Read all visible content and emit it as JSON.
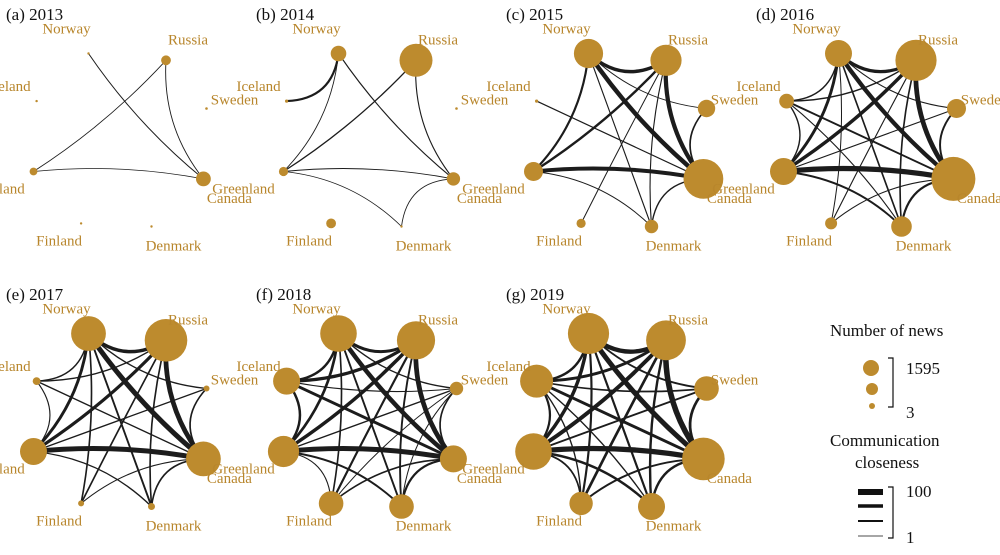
{
  "colors": {
    "node": "#bd8b2e",
    "label": "#b8862c",
    "edge": "#1c1c1c",
    "text": "#111111"
  },
  "countries": [
    "Norway",
    "Russia",
    "Sweden",
    "Canada",
    "Denmark",
    "Finland",
    "Greenland",
    "Iceland"
  ],
  "panels": [
    {
      "id": "2013",
      "title": "(a) 2013",
      "news": {
        "Norway": 3,
        "Russia": 80,
        "Sweden": 6,
        "Canada": 180,
        "Denmark": 3,
        "Finland": 3,
        "Greenland": 50,
        "Iceland": 3
      },
      "edges": [
        {
          "a": "Norway",
          "b": "Canada",
          "w": 8
        },
        {
          "a": "Russia",
          "b": "Canada",
          "w": 6
        },
        {
          "a": "Russia",
          "b": "Greenland",
          "w": 5
        },
        {
          "a": "Greenland",
          "b": "Canada",
          "w": 4
        }
      ]
    },
    {
      "id": "2014",
      "title": "(b) 2014",
      "news": {
        "Norway": 200,
        "Russia": 900,
        "Sweden": 6,
        "Canada": 150,
        "Denmark": 3,
        "Finland": 80,
        "Greenland": 70,
        "Iceland": 8
      },
      "edges": [
        {
          "a": "Norway",
          "b": "Iceland",
          "w": 30
        },
        {
          "a": "Norway",
          "b": "Canada",
          "w": 10
        },
        {
          "a": "Russia",
          "b": "Greenland",
          "w": 14
        },
        {
          "a": "Russia",
          "b": "Canada",
          "w": 10
        },
        {
          "a": "Greenland",
          "b": "Canada",
          "w": 6
        },
        {
          "a": "Greenland",
          "b": "Denmark",
          "w": 5
        },
        {
          "a": "Norway",
          "b": "Greenland",
          "w": 6
        },
        {
          "a": "Denmark",
          "b": "Canada",
          "w": 5
        }
      ]
    },
    {
      "id": "2015",
      "title": "(c) 2015",
      "news": {
        "Norway": 700,
        "Russia": 800,
        "Sweden": 250,
        "Canada": 1300,
        "Denmark": 150,
        "Finland": 70,
        "Greenland": 300,
        "Iceland": 8
      },
      "edges": [
        {
          "a": "Norway",
          "b": "Russia",
          "w": 55
        },
        {
          "a": "Norway",
          "b": "Canada",
          "w": 75
        },
        {
          "a": "Russia",
          "b": "Canada",
          "w": 70
        },
        {
          "a": "Greenland",
          "b": "Canada",
          "w": 65
        },
        {
          "a": "Norway",
          "b": "Greenland",
          "w": 30
        },
        {
          "a": "Russia",
          "b": "Greenland",
          "w": 35
        },
        {
          "a": "Iceland",
          "b": "Canada",
          "w": 12
        },
        {
          "a": "Sweden",
          "b": "Canada",
          "w": 20
        },
        {
          "a": "Denmark",
          "b": "Canada",
          "w": 15
        },
        {
          "a": "Greenland",
          "b": "Denmark",
          "w": 8
        },
        {
          "a": "Norway",
          "b": "Denmark",
          "w": 10
        },
        {
          "a": "Russia",
          "b": "Finland",
          "w": 8
        },
        {
          "a": "Norway",
          "b": "Sweden",
          "w": 6
        },
        {
          "a": "Russia",
          "b": "Denmark",
          "w": 10
        }
      ]
    },
    {
      "id": "2016",
      "title": "(d) 2016",
      "news": {
        "Norway": 600,
        "Russia": 1400,
        "Sweden": 300,
        "Canada": 1595,
        "Denmark": 350,
        "Finland": 120,
        "Greenland": 600,
        "Iceland": 180
      },
      "edges": [
        {
          "a": "Norway",
          "b": "Russia",
          "w": 50
        },
        {
          "a": "Norway",
          "b": "Canada",
          "w": 70
        },
        {
          "a": "Russia",
          "b": "Canada",
          "w": 80
        },
        {
          "a": "Greenland",
          "b": "Canada",
          "w": 90
        },
        {
          "a": "Norway",
          "b": "Greenland",
          "w": 45
        },
        {
          "a": "Russia",
          "b": "Greenland",
          "w": 55
        },
        {
          "a": "Iceland",
          "b": "Canada",
          "w": 25
        },
        {
          "a": "Sweden",
          "b": "Canada",
          "w": 25
        },
        {
          "a": "Denmark",
          "b": "Canada",
          "w": 30
        },
        {
          "a": "Greenland",
          "b": "Denmark",
          "w": 25
        },
        {
          "a": "Norway",
          "b": "Denmark",
          "w": 20
        },
        {
          "a": "Russia",
          "b": "Denmark",
          "w": 20
        },
        {
          "a": "Iceland",
          "b": "Russia",
          "w": 15
        },
        {
          "a": "Iceland",
          "b": "Greenland",
          "w": 15
        },
        {
          "a": "Norway",
          "b": "Sweden",
          "w": 10
        },
        {
          "a": "Sweden",
          "b": "Greenland",
          "w": 10
        },
        {
          "a": "Finland",
          "b": "Russia",
          "w": 10
        },
        {
          "a": "Finland",
          "b": "Canada",
          "w": 10
        },
        {
          "a": "Iceland",
          "b": "Norway",
          "w": 15
        },
        {
          "a": "Iceland",
          "b": "Denmark",
          "w": 10
        },
        {
          "a": "Finland",
          "b": "Norway",
          "w": 8
        }
      ]
    },
    {
      "id": "2017",
      "title": "(e) 2017",
      "news": {
        "Norway": 1000,
        "Russia": 1500,
        "Sweden": 30,
        "Canada": 1000,
        "Denmark": 40,
        "Finland": 30,
        "Greenland": 600,
        "Iceland": 50
      },
      "edges": [
        {
          "a": "Norway",
          "b": "Russia",
          "w": 55
        },
        {
          "a": "Norway",
          "b": "Canada",
          "w": 85
        },
        {
          "a": "Russia",
          "b": "Canada",
          "w": 80
        },
        {
          "a": "Greenland",
          "b": "Canada",
          "w": 85
        },
        {
          "a": "Norway",
          "b": "Greenland",
          "w": 45
        },
        {
          "a": "Russia",
          "b": "Greenland",
          "w": 50
        },
        {
          "a": "Iceland",
          "b": "Canada",
          "w": 15
        },
        {
          "a": "Sweden",
          "b": "Canada",
          "w": 20
        },
        {
          "a": "Denmark",
          "b": "Canada",
          "w": 20
        },
        {
          "a": "Greenland",
          "b": "Denmark",
          "w": 15
        },
        {
          "a": "Norway",
          "b": "Denmark",
          "w": 25
        },
        {
          "a": "Russia",
          "b": "Denmark",
          "w": 20
        },
        {
          "a": "Iceland",
          "b": "Russia",
          "w": 15
        },
        {
          "a": "Iceland",
          "b": "Greenland",
          "w": 10
        },
        {
          "a": "Norway",
          "b": "Sweden",
          "w": 15
        },
        {
          "a": "Sweden",
          "b": "Greenland",
          "w": 15
        },
        {
          "a": "Finland",
          "b": "Russia",
          "w": 20
        },
        {
          "a": "Finland",
          "b": "Canada",
          "w": 10
        },
        {
          "a": "Iceland",
          "b": "Norway",
          "w": 15
        },
        {
          "a": "Finland",
          "b": "Norway",
          "w": 20
        }
      ]
    },
    {
      "id": "2018",
      "title": "(f) 2018",
      "news": {
        "Norway": 1100,
        "Russia": 1200,
        "Sweden": 150,
        "Canada": 600,
        "Denmark": 500,
        "Finland": 500,
        "Greenland": 800,
        "Iceland": 600
      },
      "edges": [
        {
          "a": "Norway",
          "b": "Russia",
          "w": 45
        },
        {
          "a": "Norway",
          "b": "Canada",
          "w": 75
        },
        {
          "a": "Russia",
          "b": "Canada",
          "w": 80
        },
        {
          "a": "Greenland",
          "b": "Canada",
          "w": 85
        },
        {
          "a": "Norway",
          "b": "Greenland",
          "w": 40
        },
        {
          "a": "Russia",
          "b": "Greenland",
          "w": 55
        },
        {
          "a": "Iceland",
          "b": "Canada",
          "w": 45
        },
        {
          "a": "Sweden",
          "b": "Canada",
          "w": 20
        },
        {
          "a": "Denmark",
          "b": "Canada",
          "w": 30
        },
        {
          "a": "Greenland",
          "b": "Denmark",
          "w": 25
        },
        {
          "a": "Norway",
          "b": "Denmark",
          "w": 25
        },
        {
          "a": "Russia",
          "b": "Denmark",
          "w": 25
        },
        {
          "a": "Iceland",
          "b": "Russia",
          "w": 50
        },
        {
          "a": "Iceland",
          "b": "Greenland",
          "w": 35
        },
        {
          "a": "Norway",
          "b": "Sweden",
          "w": 15
        },
        {
          "a": "Sweden",
          "b": "Greenland",
          "w": 15
        },
        {
          "a": "Finland",
          "b": "Russia",
          "w": 30
        },
        {
          "a": "Finland",
          "b": "Canada",
          "w": 20
        },
        {
          "a": "Iceland",
          "b": "Norway",
          "w": 35
        },
        {
          "a": "Finland",
          "b": "Norway",
          "w": 20
        },
        {
          "a": "Finland",
          "b": "Greenland",
          "w": 10
        },
        {
          "a": "Finland",
          "b": "Sweden",
          "w": 8
        },
        {
          "a": "Denmark",
          "b": "Sweden",
          "w": 8
        },
        {
          "a": "Iceland",
          "b": "Sweden",
          "w": 10
        }
      ]
    },
    {
      "id": "2019",
      "title": "(g) 2019",
      "news": {
        "Norway": 1400,
        "Russia": 1300,
        "Sweden": 500,
        "Canada": 1500,
        "Denmark": 600,
        "Finland": 450,
        "Greenland": 1100,
        "Iceland": 900
      },
      "edges": [
        {
          "a": "Norway",
          "b": "Russia",
          "w": 70
        },
        {
          "a": "Norway",
          "b": "Canada",
          "w": 85
        },
        {
          "a": "Russia",
          "b": "Canada",
          "w": 95
        },
        {
          "a": "Greenland",
          "b": "Canada",
          "w": 90
        },
        {
          "a": "Norway",
          "b": "Greenland",
          "w": 55
        },
        {
          "a": "Russia",
          "b": "Greenland",
          "w": 65
        },
        {
          "a": "Iceland",
          "b": "Canada",
          "w": 45
        },
        {
          "a": "Sweden",
          "b": "Canada",
          "w": 40
        },
        {
          "a": "Denmark",
          "b": "Canada",
          "w": 35
        },
        {
          "a": "Greenland",
          "b": "Denmark",
          "w": 35
        },
        {
          "a": "Norway",
          "b": "Denmark",
          "w": 30
        },
        {
          "a": "Russia",
          "b": "Denmark",
          "w": 35
        },
        {
          "a": "Iceland",
          "b": "Russia",
          "w": 45
        },
        {
          "a": "Iceland",
          "b": "Greenland",
          "w": 30
        },
        {
          "a": "Norway",
          "b": "Sweden",
          "w": 25
        },
        {
          "a": "Sweden",
          "b": "Greenland",
          "w": 25
        },
        {
          "a": "Finland",
          "b": "Russia",
          "w": 40
        },
        {
          "a": "Finland",
          "b": "Canada",
          "w": 25
        },
        {
          "a": "Iceland",
          "b": "Norway",
          "w": 35
        },
        {
          "a": "Finland",
          "b": "Norway",
          "w": 30
        },
        {
          "a": "Finland",
          "b": "Greenland",
          "w": 20
        },
        {
          "a": "Iceland",
          "b": "Sweden",
          "w": 20
        },
        {
          "a": "Iceland",
          "b": "Finland",
          "w": 15
        },
        {
          "a": "Iceland",
          "b": "Denmark",
          "w": 15
        }
      ]
    }
  ],
  "legend": {
    "size_title": "Number of news",
    "size_max": "1595",
    "size_min": "3",
    "closeness_title_1": "Communication",
    "closeness_title_2": "closeness",
    "closeness_max": "100",
    "closeness_min": "1"
  }
}
